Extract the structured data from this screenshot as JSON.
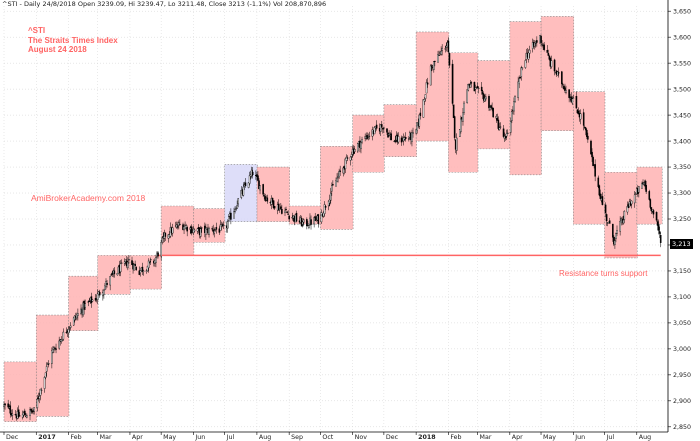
{
  "header": {
    "info": "^STI - Daily 24/8/2018 Open 3239.09, Hi 3239.47, Lo 3211.48, Close 3213 (-1.1%) Vol 208,870,896"
  },
  "annotations": {
    "symbol": "^STI",
    "index_name": "The Straits Times Index",
    "date": "August 24 2018",
    "watermark": "AmiBrokerAcademy.com  2018",
    "resistance_note": "Resistance turns support"
  },
  "last_value_label": "3,213",
  "colors": {
    "box_red_fill": "#ffb3b3",
    "box_blue_fill": "#d8d8f8",
    "box_border": "#888888",
    "line": "#ff6464",
    "text": "#ff6464",
    "candle": "#000000"
  },
  "chart_data": {
    "type": "candlestick",
    "title": "",
    "xlabel": "",
    "ylabel": "",
    "ylim": [
      2840,
      3660
    ],
    "yticks": [
      2850,
      2900,
      2950,
      3000,
      3050,
      3100,
      3150,
      3200,
      3250,
      3300,
      3350,
      3400,
      3450,
      3500,
      3550,
      3600,
      3650
    ],
    "ytick_labels": [
      "2,850",
      "2,900",
      "2,950",
      "3,000",
      "3,050",
      "3,100",
      "3,150",
      "3,200",
      "3,250",
      "3,300",
      "3,350",
      "3,400",
      "3,450",
      "3,500",
      "3,550",
      "3,600",
      "3,650"
    ],
    "x_labels": [
      "Dec",
      "2017",
      "Feb",
      "Mar",
      "Apr",
      "May",
      "Jun",
      "Jul",
      "Aug",
      "Sep",
      "Oct",
      "Nov",
      "Dec",
      "2018",
      "Feb",
      "Mar",
      "Apr",
      "May",
      "Jun",
      "Jul",
      "Aug"
    ],
    "x_months": [
      "2016-12",
      "2017-01",
      "2017-02",
      "2017-03",
      "2017-04",
      "2017-05",
      "2017-06",
      "2017-07",
      "2017-08",
      "2017-09",
      "2017-10",
      "2017-11",
      "2017-12",
      "2018-01",
      "2018-02",
      "2018-03",
      "2018-04",
      "2018-05",
      "2018-06",
      "2018-07",
      "2018-08"
    ],
    "x_range": [
      "2016-12-01",
      "2018-08-31"
    ],
    "grid": true,
    "price_path": [
      [
        "2016-12-01",
        2890
      ],
      [
        "2016-12-15",
        2870
      ],
      [
        "2016-12-30",
        2880
      ],
      [
        "2017-01-15",
        2990
      ],
      [
        "2017-01-31",
        3040
      ],
      [
        "2017-02-15",
        3080
      ],
      [
        "2017-02-28",
        3100
      ],
      [
        "2017-03-15",
        3140
      ],
      [
        "2017-03-31",
        3170
      ],
      [
        "2017-04-10",
        3150
      ],
      [
        "2017-04-25",
        3170
      ],
      [
        "2017-05-05",
        3220
      ],
      [
        "2017-05-20",
        3240
      ],
      [
        "2017-06-05",
        3225
      ],
      [
        "2017-06-20",
        3230
      ],
      [
        "2017-07-01",
        3230
      ],
      [
        "2017-07-15",
        3290
      ],
      [
        "2017-07-28",
        3340
      ],
      [
        "2017-08-10",
        3290
      ],
      [
        "2017-08-31",
        3260
      ],
      [
        "2017-09-15",
        3240
      ],
      [
        "2017-09-30",
        3250
      ],
      [
        "2017-10-15",
        3320
      ],
      [
        "2017-10-31",
        3380
      ],
      [
        "2017-11-15",
        3410
      ],
      [
        "2017-11-30",
        3430
      ],
      [
        "2017-12-10",
        3400
      ],
      [
        "2017-12-31",
        3410
      ],
      [
        "2018-01-15",
        3540
      ],
      [
        "2018-01-31",
        3590
      ],
      [
        "2018-02-08",
        3390
      ],
      [
        "2018-02-20",
        3510
      ],
      [
        "2018-03-10",
        3480
      ],
      [
        "2018-03-28",
        3400
      ],
      [
        "2018-04-15",
        3560
      ],
      [
        "2018-04-30",
        3600
      ],
      [
        "2018-05-10",
        3550
      ],
      [
        "2018-05-31",
        3480
      ],
      [
        "2018-06-10",
        3440
      ],
      [
        "2018-06-30",
        3270
      ],
      [
        "2018-07-10",
        3210
      ],
      [
        "2018-07-25",
        3280
      ],
      [
        "2018-08-08",
        3320
      ],
      [
        "2018-08-24",
        3213
      ]
    ],
    "boxes": [
      {
        "x0": "2016-12-01",
        "x1": "2016-12-31",
        "y0": 2860,
        "y1": 2975,
        "color": "red"
      },
      {
        "x0": "2017-01-01",
        "x1": "2017-01-31",
        "y0": 2870,
        "y1": 3065,
        "color": "red"
      },
      {
        "x0": "2017-02-01",
        "x1": "2017-02-28",
        "y0": 3035,
        "y1": 3140,
        "color": "red"
      },
      {
        "x0": "2017-03-01",
        "x1": "2017-03-31",
        "y0": 3105,
        "y1": 3180,
        "color": "red"
      },
      {
        "x0": "2017-04-01",
        "x1": "2017-04-30",
        "y0": 3115,
        "y1": 3180,
        "color": "red"
      },
      {
        "x0": "2017-05-01",
        "x1": "2017-05-31",
        "y0": 3180,
        "y1": 3275,
        "color": "red"
      },
      {
        "x0": "2017-06-01",
        "x1": "2017-06-30",
        "y0": 3205,
        "y1": 3270,
        "color": "red"
      },
      {
        "x0": "2017-07-01",
        "x1": "2017-07-31",
        "y0": 3245,
        "y1": 3355,
        "color": "blue"
      },
      {
        "x0": "2017-08-01",
        "x1": "2017-08-31",
        "y0": 3245,
        "y1": 3350,
        "color": "red"
      },
      {
        "x0": "2017-09-01",
        "x1": "2017-09-30",
        "y0": 3240,
        "y1": 3275,
        "color": "red"
      },
      {
        "x0": "2017-10-01",
        "x1": "2017-10-31",
        "y0": 3230,
        "y1": 3390,
        "color": "red"
      },
      {
        "x0": "2017-11-01",
        "x1": "2017-11-30",
        "y0": 3340,
        "y1": 3450,
        "color": "red"
      },
      {
        "x0": "2017-12-01",
        "x1": "2017-12-31",
        "y0": 3370,
        "y1": 3470,
        "color": "red"
      },
      {
        "x0": "2018-01-01",
        "x1": "2018-01-31",
        "y0": 3400,
        "y1": 3610,
        "color": "red"
      },
      {
        "x0": "2018-02-01",
        "x1": "2018-02-28",
        "y0": 3340,
        "y1": 3570,
        "color": "red"
      },
      {
        "x0": "2018-03-01",
        "x1": "2018-03-31",
        "y0": 3385,
        "y1": 3555,
        "color": "red"
      },
      {
        "x0": "2018-04-01",
        "x1": "2018-04-30",
        "y0": 3335,
        "y1": 3630,
        "color": "red"
      },
      {
        "x0": "2018-05-01",
        "x1": "2018-05-31",
        "y0": 3420,
        "y1": 3640,
        "color": "red"
      },
      {
        "x0": "2018-06-01",
        "x1": "2018-06-30",
        "y0": 3240,
        "y1": 3495,
        "color": "red"
      },
      {
        "x0": "2018-07-01",
        "x1": "2018-07-31",
        "y0": 3175,
        "y1": 3340,
        "color": "red"
      },
      {
        "x0": "2018-08-01",
        "x1": "2018-08-24",
        "y0": 3240,
        "y1": 3350,
        "color": "red"
      }
    ],
    "support_line": {
      "x0": "2017-04-28",
      "x1": "2018-08-24",
      "y": 3180
    }
  }
}
